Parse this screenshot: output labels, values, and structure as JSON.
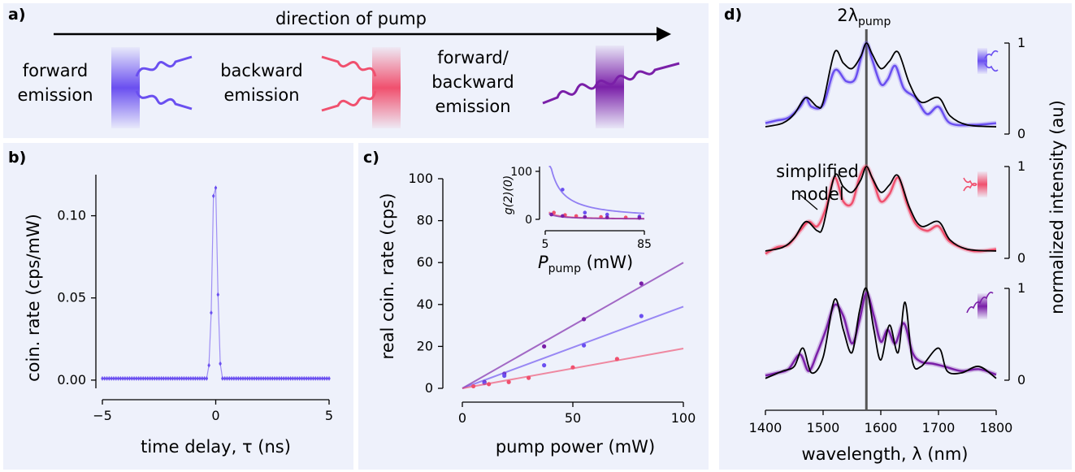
{
  "panel_a": {
    "label": "a)",
    "arrow_title": "direction of pump",
    "forward": {
      "line1": "forward",
      "line2": "emission"
    },
    "backward": {
      "line1": "backward",
      "line2": "emission"
    },
    "both": {
      "line1": "forward/",
      "line2": "backward",
      "line3": "emission"
    }
  },
  "colors": {
    "forward": "#6a4ff0",
    "backward": "#f0506e",
    "both": "#7a1fa8",
    "model": "#000000"
  },
  "chart_data": [
    {
      "panel": "b)",
      "type": "line",
      "xlabel": "time delay, τ (ns)",
      "ylabel": "coin. rate (cps/mW)",
      "xlim": [
        -5,
        5
      ],
      "ylim": [
        -0.005,
        0.125
      ],
      "xticks": [
        {
          "v": -5,
          "t": "−5"
        },
        {
          "v": 0,
          "t": "0"
        },
        {
          "v": 5,
          "t": "5"
        }
      ],
      "yticks": [
        {
          "v": 0,
          "t": "0.00"
        },
        {
          "v": 0.05,
          "t": "0.05"
        },
        {
          "v": 0.1,
          "t": "0.10"
        }
      ],
      "peak": [
        {
          "x": -0.3,
          "y": 0.009
        },
        {
          "x": -0.2,
          "y": 0.041
        },
        {
          "x": -0.1,
          "y": 0.112
        },
        {
          "x": 0.0,
          "y": 0.117
        },
        {
          "x": 0.1,
          "y": 0.052
        },
        {
          "x": 0.2,
          "y": 0.01
        }
      ],
      "baseline": 0.001
    },
    {
      "panel": "c)",
      "type": "scatter",
      "xlabel": "pump power (mW)",
      "ylabel": "real coin. rate (cps)",
      "xlim": [
        0,
        100
      ],
      "ylim": [
        0,
        100
      ],
      "xticks": [
        0,
        50,
        100
      ],
      "yticks": [
        0,
        20,
        40,
        60,
        80,
        100
      ],
      "series": [
        {
          "key": "both",
          "points": [
            [
              10,
              3
            ],
            [
              19,
              7
            ],
            [
              37,
              20
            ],
            [
              55,
              33
            ],
            [
              81,
              50
            ]
          ],
          "fit": [
            [
              0,
              0
            ],
            [
              100,
              60
            ]
          ]
        },
        {
          "key": "forward",
          "points": [
            [
              10,
              2.5
            ],
            [
              19,
              6
            ],
            [
              37,
              11
            ],
            [
              55,
              20.5
            ],
            [
              81,
              34.5
            ]
          ],
          "fit": [
            [
              0,
              0
            ],
            [
              100,
              39
            ]
          ]
        },
        {
          "key": "backward",
          "points": [
            [
              5,
              1
            ],
            [
              12,
              2
            ],
            [
              21,
              3
            ],
            [
              30,
              5
            ],
            [
              50,
              10
            ],
            [
              70,
              14
            ]
          ],
          "fit": [
            [
              0,
              0
            ],
            [
              100,
              19
            ]
          ]
        }
      ],
      "inset": {
        "xlabel": "P",
        "xlabel_sub": "pump",
        "xlabel_unit": " (mW)",
        "ylabel": "g(2)(0)",
        "xticks": [
          5,
          85
        ],
        "yticks": [
          0,
          100
        ],
        "xlim": [
          5,
          85
        ],
        "ylim": [
          0,
          110
        ],
        "series": [
          {
            "key": "forward",
            "points": [
              [
                19,
                62
              ],
              [
                37,
                14
              ],
              [
                55,
                10
              ],
              [
                81,
                6
              ]
            ]
          },
          {
            "key": "backward",
            "points": [
              [
                12,
                14
              ],
              [
                21,
                9
              ],
              [
                30,
                7
              ],
              [
                50,
                5
              ],
              [
                70,
                4
              ]
            ]
          },
          {
            "key": "both",
            "points": [
              [
                10,
                10
              ],
              [
                19,
                7
              ],
              [
                37,
                5
              ],
              [
                55,
                4
              ],
              [
                81,
                3
              ]
            ]
          }
        ]
      }
    },
    {
      "panel": "d)",
      "type": "line",
      "xlabel": "wavelength, λ (nm)",
      "ylabel": "normalized intensity (au)",
      "marker_label": "2λ",
      "marker_sub": "pump",
      "marker_x": 1575,
      "xlim": [
        1400,
        1800
      ],
      "xticks": [
        1400,
        1500,
        1600,
        1700,
        1800
      ],
      "yticks": [
        {
          "v": 0,
          "t": "0"
        },
        {
          "v": 1,
          "t": "1"
        }
      ],
      "model_label": [
        "simplified",
        "model"
      ],
      "stacks": [
        {
          "key": "forward",
          "data": [
            [
              1400,
              0.12
            ],
            [
              1420,
              0.15
            ],
            [
              1440,
              0.18
            ],
            [
              1460,
              0.3
            ],
            [
              1470,
              0.4
            ],
            [
              1480,
              0.3
            ],
            [
              1500,
              0.32
            ],
            [
              1520,
              0.7
            ],
            [
              1540,
              0.58
            ],
            [
              1555,
              0.6
            ],
            [
              1565,
              0.82
            ],
            [
              1575,
              1.0
            ],
            [
              1585,
              0.82
            ],
            [
              1600,
              0.55
            ],
            [
              1612,
              0.6
            ],
            [
              1625,
              0.75
            ],
            [
              1640,
              0.5
            ],
            [
              1660,
              0.4
            ],
            [
              1680,
              0.22
            ],
            [
              1700,
              0.3
            ],
            [
              1720,
              0.12
            ],
            [
              1760,
              0.1
            ],
            [
              1800,
              0.12
            ]
          ],
          "model": [
            [
              1400,
              0.08
            ],
            [
              1430,
              0.12
            ],
            [
              1450,
              0.22
            ],
            [
              1470,
              0.4
            ],
            [
              1490,
              0.3
            ],
            [
              1500,
              0.35
            ],
            [
              1520,
              0.9
            ],
            [
              1535,
              0.78
            ],
            [
              1550,
              0.72
            ],
            [
              1565,
              0.85
            ],
            [
              1575,
              1.0
            ],
            [
              1585,
              0.88
            ],
            [
              1600,
              0.72
            ],
            [
              1615,
              0.8
            ],
            [
              1630,
              0.9
            ],
            [
              1650,
              0.55
            ],
            [
              1670,
              0.35
            ],
            [
              1700,
              0.4
            ],
            [
              1720,
              0.2
            ],
            [
              1750,
              0.1
            ],
            [
              1800,
              0.08
            ]
          ]
        },
        {
          "key": "backward",
          "data": [
            [
              1400,
              0.05
            ],
            [
              1420,
              0.12
            ],
            [
              1440,
              0.15
            ],
            [
              1460,
              0.3
            ],
            [
              1475,
              0.4
            ],
            [
              1490,
              0.35
            ],
            [
              1505,
              0.55
            ],
            [
              1520,
              0.88
            ],
            [
              1535,
              0.62
            ],
            [
              1550,
              0.6
            ],
            [
              1563,
              0.88
            ],
            [
              1575,
              1.0
            ],
            [
              1588,
              0.82
            ],
            [
              1600,
              0.62
            ],
            [
              1615,
              0.7
            ],
            [
              1630,
              0.88
            ],
            [
              1645,
              0.6
            ],
            [
              1660,
              0.38
            ],
            [
              1680,
              0.3
            ],
            [
              1700,
              0.35
            ],
            [
              1720,
              0.18
            ],
            [
              1760,
              0.08
            ],
            [
              1800,
              0.1
            ]
          ],
          "model": [
            [
              1400,
              0.08
            ],
            [
              1430,
              0.12
            ],
            [
              1450,
              0.22
            ],
            [
              1470,
              0.4
            ],
            [
              1490,
              0.3
            ],
            [
              1500,
              0.35
            ],
            [
              1520,
              0.9
            ],
            [
              1535,
              0.78
            ],
            [
              1550,
              0.72
            ],
            [
              1565,
              0.85
            ],
            [
              1575,
              1.0
            ],
            [
              1585,
              0.88
            ],
            [
              1600,
              0.72
            ],
            [
              1615,
              0.8
            ],
            [
              1630,
              0.9
            ],
            [
              1650,
              0.55
            ],
            [
              1670,
              0.35
            ],
            [
              1700,
              0.4
            ],
            [
              1720,
              0.2
            ],
            [
              1750,
              0.1
            ],
            [
              1800,
              0.08
            ]
          ]
        },
        {
          "key": "both",
          "data": [
            [
              1400,
              0.05
            ],
            [
              1420,
              0.08
            ],
            [
              1440,
              0.12
            ],
            [
              1460,
              0.28
            ],
            [
              1475,
              0.1
            ],
            [
              1490,
              0.3
            ],
            [
              1505,
              0.55
            ],
            [
              1520,
              0.82
            ],
            [
              1535,
              0.7
            ],
            [
              1550,
              0.4
            ],
            [
              1563,
              0.65
            ],
            [
              1575,
              0.95
            ],
            [
              1588,
              0.7
            ],
            [
              1600,
              0.42
            ],
            [
              1612,
              0.55
            ],
            [
              1625,
              0.4
            ],
            [
              1640,
              0.62
            ],
            [
              1655,
              0.3
            ],
            [
              1670,
              0.2
            ],
            [
              1690,
              0.18
            ],
            [
              1710,
              0.15
            ],
            [
              1740,
              0.1
            ],
            [
              1770,
              0.12
            ],
            [
              1800,
              0.06
            ]
          ],
          "model": [
            [
              1400,
              0.02
            ],
            [
              1430,
              0.1
            ],
            [
              1450,
              0.15
            ],
            [
              1465,
              0.35
            ],
            [
              1480,
              0.08
            ],
            [
              1500,
              0.25
            ],
            [
              1520,
              0.88
            ],
            [
              1535,
              0.55
            ],
            [
              1550,
              0.3
            ],
            [
              1563,
              0.75
            ],
            [
              1575,
              1.0
            ],
            [
              1588,
              0.55
            ],
            [
              1600,
              0.22
            ],
            [
              1615,
              0.6
            ],
            [
              1630,
              0.3
            ],
            [
              1642,
              0.85
            ],
            [
              1655,
              0.2
            ],
            [
              1670,
              0.15
            ],
            [
              1700,
              0.35
            ],
            [
              1715,
              0.1
            ],
            [
              1740,
              0.08
            ],
            [
              1770,
              0.15
            ],
            [
              1800,
              0.02
            ]
          ]
        }
      ]
    }
  ]
}
